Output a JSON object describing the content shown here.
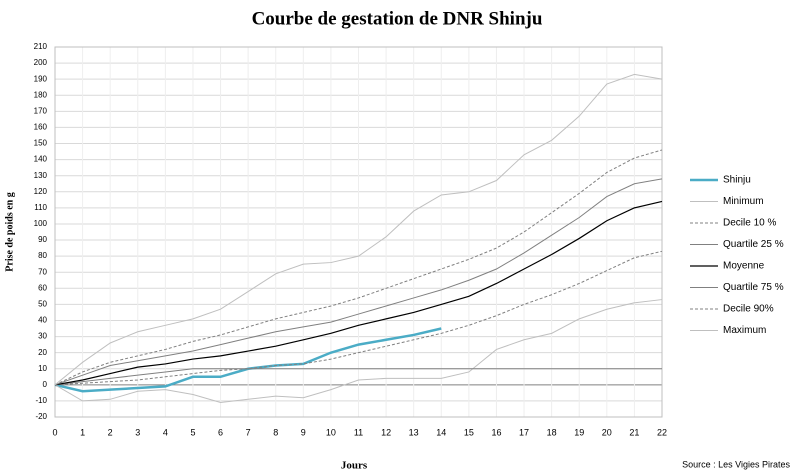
{
  "chart_data": {
    "type": "line",
    "title": "Courbe de gestation de DNR Shinju",
    "x_label": "Jours",
    "y_label": "Prise de poids en g",
    "source": "Source : Les Vigies Pirates",
    "x": [
      0,
      1,
      2,
      3,
      4,
      5,
      6,
      7,
      8,
      9,
      10,
      11,
      12,
      13,
      14,
      15,
      16,
      17,
      18,
      19,
      20,
      21,
      22
    ],
    "xlim": [
      0,
      22
    ],
    "xticks": [
      0,
      1,
      2,
      3,
      4,
      5,
      6,
      7,
      8,
      9,
      10,
      11,
      12,
      13,
      14,
      15,
      16,
      17,
      18,
      19,
      20,
      21,
      22
    ],
    "ylim": [
      -20,
      210
    ],
    "yticks": [
      -20,
      -10,
      0,
      10,
      20,
      30,
      40,
      50,
      60,
      70,
      80,
      90,
      100,
      110,
      120,
      130,
      140,
      150,
      160,
      170,
      180,
      190,
      200,
      210
    ],
    "grid": true,
    "legend": "right",
    "series": [
      {
        "name": "Shinju",
        "color": "#4bacc6",
        "width": 2.5,
        "dash": false,
        "values": [
          0,
          -4,
          -3,
          -2,
          -1,
          5,
          5,
          10,
          12,
          13,
          20,
          25,
          28,
          31,
          35,
          null,
          null,
          null,
          null,
          null,
          null,
          null,
          null
        ]
      },
      {
        "name": "Minimum",
        "color": "#bfbfbf",
        "width": 1,
        "dash": false,
        "values": [
          0,
          -10,
          -9,
          -4,
          -3,
          -6,
          -11,
          -9,
          -7,
          -8,
          -3,
          3,
          4,
          4,
          4,
          8,
          22,
          28,
          32,
          41,
          47,
          51,
          53
        ]
      },
      {
        "name": "Decile 10 %",
        "color": "#808080",
        "width": 1,
        "dash": true,
        "values": [
          0,
          1,
          2,
          3,
          5,
          7,
          9,
          10,
          12,
          13,
          16,
          20,
          24,
          28,
          32,
          37,
          43,
          50,
          56,
          63,
          71,
          79,
          83
        ]
      },
      {
        "name": "Quartile 25 %",
        "color": "#808080",
        "width": 1,
        "dash": false,
        "values": [
          0,
          2,
          4,
          6,
          8,
          10,
          10,
          10,
          10,
          10,
          10,
          10,
          10,
          10,
          10,
          10,
          10,
          10,
          10,
          10,
          10,
          10,
          10
        ]
      },
      {
        "name": "Moyenne",
        "color": "#000000",
        "width": 1.2,
        "dash": false,
        "values": [
          0,
          3,
          7,
          11,
          13,
          16,
          18,
          21,
          24,
          28,
          32,
          37,
          41,
          45,
          50,
          55,
          63,
          72,
          81,
          91,
          102,
          110,
          114
        ]
      },
      {
        "name": "Quartile 75 %",
        "color": "#808080",
        "width": 1,
        "dash": false,
        "values": [
          0,
          6,
          12,
          15,
          18,
          21,
          25,
          29,
          33,
          36,
          39,
          44,
          49,
          54,
          59,
          65,
          72,
          82,
          93,
          104,
          117,
          125,
          128
        ]
      },
      {
        "name": "Decile 90%",
        "color": "#808080",
        "width": 1,
        "dash": true,
        "values": [
          0,
          8,
          14,
          18,
          22,
          27,
          31,
          36,
          41,
          45,
          49,
          54,
          60,
          66,
          72,
          78,
          85,
          95,
          107,
          119,
          132,
          141,
          146
        ]
      },
      {
        "name": "Maximum",
        "color": "#bfbfbf",
        "width": 1,
        "dash": false,
        "values": [
          0,
          14,
          26,
          33,
          37,
          41,
          47,
          58,
          69,
          75,
          76,
          80,
          92,
          108,
          118,
          120,
          127,
          143,
          152,
          167,
          187,
          193,
          190
        ]
      }
    ]
  }
}
